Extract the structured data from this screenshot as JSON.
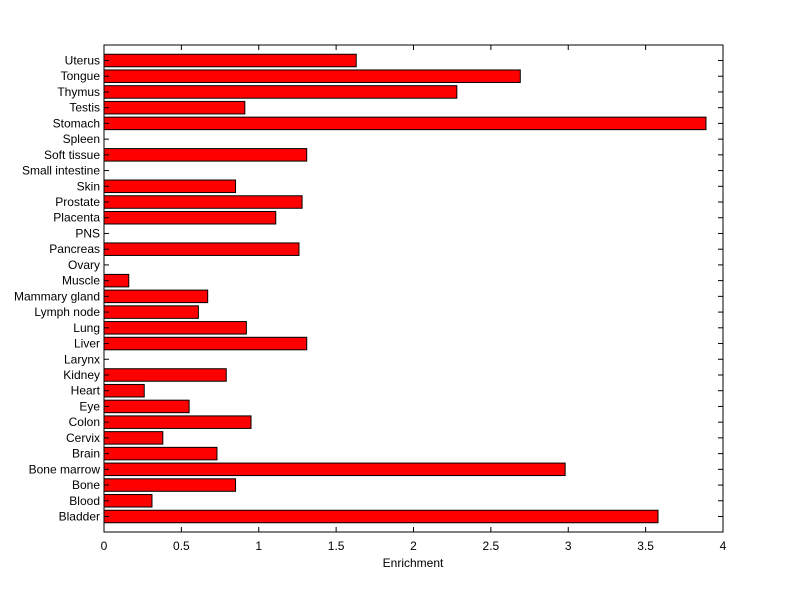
{
  "chart_data": {
    "type": "bar",
    "orientation": "horizontal",
    "title": "",
    "xlabel": "Enrichment",
    "ylabel": "",
    "xlim": [
      0,
      4
    ],
    "xticks": [
      0,
      0.5,
      1,
      1.5,
      2,
      2.5,
      3,
      3.5,
      4
    ],
    "xtick_labels": [
      "0",
      "0.5",
      "1",
      "1.5",
      "2",
      "2.5",
      "3",
      "3.5",
      "4"
    ],
    "grid": false,
    "bar_color": "#ff0000",
    "edge_color": "#000000",
    "categories": [
      "Bladder",
      "Blood",
      "Bone",
      "Bone marrow",
      "Brain",
      "Cervix",
      "Colon",
      "Eye",
      "Heart",
      "Kidney",
      "Larynx",
      "Liver",
      "Lung",
      "Lymph node",
      "Mammary gland",
      "Muscle",
      "Ovary",
      "Pancreas",
      "PNS",
      "Placenta",
      "Prostate",
      "Skin",
      "Small intestine",
      "Soft tissue",
      "Spleen",
      "Stomach",
      "Testis",
      "Thymus",
      "Tongue",
      "Uterus"
    ],
    "values": [
      3.58,
      0.31,
      0.85,
      2.98,
      0.73,
      0.38,
      0.95,
      0.55,
      0.26,
      0.79,
      0,
      1.31,
      0.92,
      0.61,
      0.67,
      0.16,
      0,
      1.26,
      0,
      1.11,
      1.28,
      0.85,
      0,
      1.31,
      0,
      3.89,
      0.91,
      2.28,
      2.69,
      1.63
    ]
  }
}
